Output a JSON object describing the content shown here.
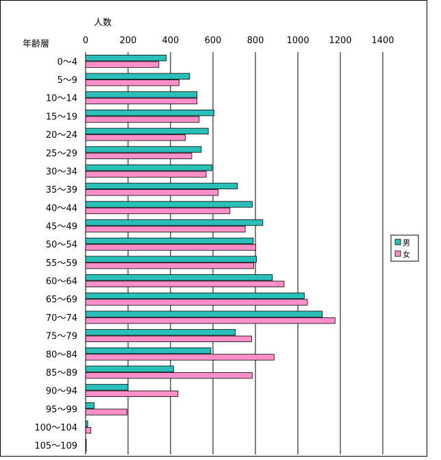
{
  "chart_data": {
    "type": "bar",
    "orientation": "horizontal",
    "title": "",
    "xlabel": "人数",
    "ylabel": "年齢層",
    "xlim": [
      0,
      1400
    ],
    "xticks": [
      0,
      200,
      400,
      600,
      800,
      1000,
      1200,
      1400
    ],
    "grid": true,
    "legend_position": "right",
    "categories": [
      "0～4",
      "5～9",
      "10～14",
      "15～19",
      "20～24",
      "25～29",
      "30～34",
      "35～39",
      "40～44",
      "45～49",
      "50～54",
      "55～59",
      "60～64",
      "65～69",
      "70～74",
      "75～79",
      "80～84",
      "85～89",
      "90～94",
      "95～99",
      "100～104",
      "105～109"
    ],
    "series": [
      {
        "name": "男",
        "color": "#2bbfb9",
        "values": [
          380,
          490,
          525,
          605,
          578,
          545,
          595,
          715,
          785,
          835,
          790,
          805,
          880,
          1030,
          1115,
          705,
          590,
          415,
          200,
          40,
          10,
          2
        ]
      },
      {
        "name": "女",
        "color": "#ff8fc9",
        "values": [
          345,
          440,
          525,
          535,
          470,
          500,
          568,
          625,
          680,
          752,
          802,
          792,
          935,
          1045,
          1175,
          782,
          888,
          785,
          435,
          195,
          25,
          3
        ]
      }
    ]
  }
}
